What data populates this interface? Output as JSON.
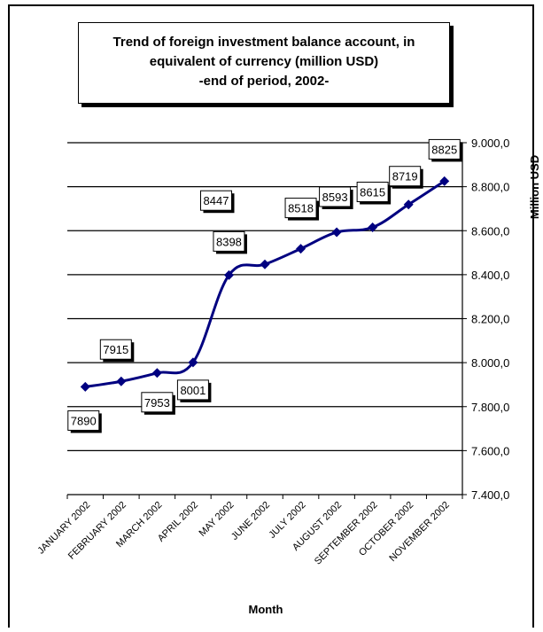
{
  "chart_data": {
    "type": "line",
    "title_lines": [
      "Trend of foreign investment balance account, in",
      "equivalent of currency (million USD)",
      "-end of period, 2002-"
    ],
    "xlabel": "Month",
    "ylabel": "Million USD",
    "categories": [
      "JANUARY 2002",
      "FEBRUARY 2002",
      "MARCH 2002",
      "APRIL 2002",
      "MAY 2002",
      "JUNE 2002",
      "JULY 2002",
      "AUGUST 2002",
      "SEPTEMBER 2002",
      "OCTOBER 2002",
      "NOVEMBER 2002"
    ],
    "values": [
      7890,
      7915,
      7953,
      8001,
      8398,
      8447,
      8518,
      8593,
      8615,
      8719,
      8825
    ],
    "data_labels": [
      "7890",
      "7915",
      "7953",
      "8001",
      "8398",
      "8447",
      "8518",
      "8593",
      "8615",
      "8719",
      "8825"
    ],
    "ylim": [
      7400,
      9000
    ],
    "yticks": [
      7400,
      7600,
      7800,
      8000,
      8200,
      8400,
      8600,
      8800,
      9000
    ],
    "ytick_labels": [
      "7.400,0",
      "7.600,0",
      "7.800,0",
      "8.000,0",
      "8.200,0",
      "8.400,0",
      "8.600,0",
      "8.800,0",
      "9.000,0"
    ],
    "line_color": "#000080",
    "grid": true,
    "y_axis_side": "right",
    "legend": "none"
  }
}
